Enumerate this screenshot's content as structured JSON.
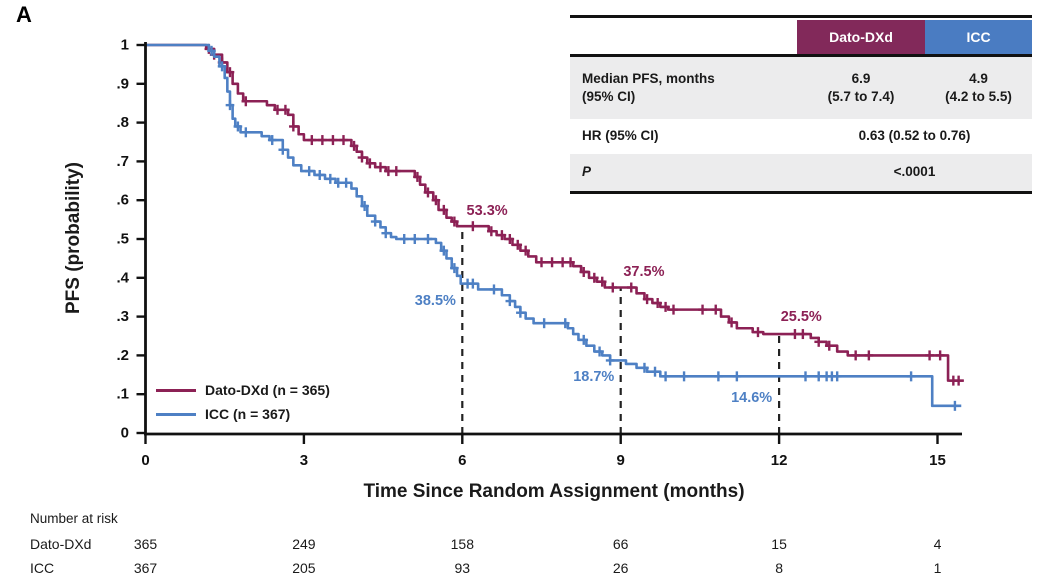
{
  "panel_label": "A",
  "colors": {
    "dato": "#8C2155",
    "icc": "#4E80C4",
    "dato_header_bg": "#82295A",
    "icc_header_bg": "#4A7CC2",
    "axis": "#111111",
    "row_shade": "#ECECED"
  },
  "chart_data": {
    "type": "line",
    "subtype": "kaplan-meier-step",
    "title": "",
    "x_label": "Time Since Random Assignment (months)",
    "y_label": "PFS (probability)",
    "xlim": [
      0,
      15.6
    ],
    "ylim": [
      0,
      1
    ],
    "grid": false,
    "legend_position": "inside lower-left",
    "x_ticks": [
      0,
      3,
      6,
      9,
      12,
      15
    ],
    "y_ticks": [
      {
        "v": 0.0,
        "label": "0"
      },
      {
        "v": 0.1,
        "label": ".1"
      },
      {
        "v": 0.2,
        "label": ".2"
      },
      {
        "v": 0.3,
        "label": ".3"
      },
      {
        "v": 0.4,
        "label": ".4"
      },
      {
        "v": 0.5,
        "label": ".5"
      },
      {
        "v": 0.6,
        "label": ".6"
      },
      {
        "v": 0.7,
        "label": ".7"
      },
      {
        "v": 0.8,
        "label": ".8"
      },
      {
        "v": 0.9,
        "label": ".9"
      },
      {
        "v": 1.0,
        "label": "1"
      }
    ],
    "series": [
      {
        "name": "Dato-DXd (n = 365)",
        "short_name": "Dato-DXd",
        "n": 365,
        "color": "#8C2155",
        "end": 15.5,
        "steps": [
          [
            1.15,
            0.99
          ],
          [
            1.3,
            0.975
          ],
          [
            1.45,
            0.955
          ],
          [
            1.55,
            0.93
          ],
          [
            1.65,
            0.9
          ],
          [
            1.75,
            0.875
          ],
          [
            1.85,
            0.855
          ],
          [
            2.3,
            0.845
          ],
          [
            2.45,
            0.833
          ],
          [
            2.7,
            0.82
          ],
          [
            2.8,
            0.79
          ],
          [
            2.9,
            0.77
          ],
          [
            3.0,
            0.755
          ],
          [
            3.9,
            0.74
          ],
          [
            4.0,
            0.725
          ],
          [
            4.1,
            0.71
          ],
          [
            4.2,
            0.695
          ],
          [
            4.35,
            0.685
          ],
          [
            4.55,
            0.675
          ],
          [
            5.1,
            0.66
          ],
          [
            5.2,
            0.64
          ],
          [
            5.3,
            0.62
          ],
          [
            5.45,
            0.6
          ],
          [
            5.55,
            0.575
          ],
          [
            5.7,
            0.555
          ],
          [
            5.8,
            0.545
          ],
          [
            5.9,
            0.533
          ],
          [
            6.5,
            0.52
          ],
          [
            6.65,
            0.51
          ],
          [
            6.8,
            0.5
          ],
          [
            6.95,
            0.485
          ],
          [
            7.1,
            0.47
          ],
          [
            7.25,
            0.455
          ],
          [
            7.4,
            0.44
          ],
          [
            8.1,
            0.43
          ],
          [
            8.25,
            0.415
          ],
          [
            8.4,
            0.4
          ],
          [
            8.55,
            0.39
          ],
          [
            8.7,
            0.375
          ],
          [
            9.3,
            0.36
          ],
          [
            9.45,
            0.345
          ],
          [
            9.6,
            0.335
          ],
          [
            9.75,
            0.325
          ],
          [
            9.9,
            0.318
          ],
          [
            10.9,
            0.3
          ],
          [
            11.05,
            0.285
          ],
          [
            11.2,
            0.27
          ],
          [
            11.5,
            0.26
          ],
          [
            11.7,
            0.255
          ],
          [
            12.6,
            0.245
          ],
          [
            12.75,
            0.235
          ],
          [
            12.9,
            0.225
          ],
          [
            13.1,
            0.21
          ],
          [
            13.3,
            0.2
          ],
          [
            15.2,
            0.135
          ]
        ],
        "censors": [
          1.2,
          1.3,
          1.45,
          1.6,
          1.9,
          2.5,
          2.65,
          2.8,
          3.15,
          3.35,
          3.55,
          3.75,
          3.95,
          4.1,
          4.25,
          4.45,
          4.6,
          4.75,
          5.15,
          5.35,
          5.5,
          5.65,
          5.85,
          6.2,
          6.55,
          6.75,
          6.9,
          7.05,
          7.2,
          7.5,
          7.7,
          7.9,
          8.05,
          8.3,
          8.5,
          8.65,
          8.85,
          9.2,
          9.5,
          9.7,
          9.85,
          10.0,
          10.55,
          10.8,
          11.1,
          11.6,
          12.3,
          12.45,
          12.75,
          12.95,
          13.45,
          13.7,
          14.85,
          15.05,
          15.3,
          15.4
        ]
      },
      {
        "name": "ICC (n = 367)",
        "short_name": "ICC",
        "n": 367,
        "color": "#4E80C4",
        "end": 15.45,
        "steps": [
          [
            1.2,
            0.985
          ],
          [
            1.3,
            0.97
          ],
          [
            1.4,
            0.945
          ],
          [
            1.5,
            0.915
          ],
          [
            1.55,
            0.88
          ],
          [
            1.6,
            0.845
          ],
          [
            1.65,
            0.81
          ],
          [
            1.7,
            0.79
          ],
          [
            1.8,
            0.775
          ],
          [
            2.2,
            0.765
          ],
          [
            2.35,
            0.755
          ],
          [
            2.6,
            0.73
          ],
          [
            2.7,
            0.71
          ],
          [
            2.8,
            0.69
          ],
          [
            2.95,
            0.675
          ],
          [
            3.2,
            0.665
          ],
          [
            3.4,
            0.655
          ],
          [
            3.6,
            0.645
          ],
          [
            3.9,
            0.63
          ],
          [
            4.0,
            0.61
          ],
          [
            4.1,
            0.585
          ],
          [
            4.2,
            0.56
          ],
          [
            4.35,
            0.545
          ],
          [
            4.45,
            0.53
          ],
          [
            4.55,
            0.515
          ],
          [
            4.65,
            0.505
          ],
          [
            4.75,
            0.5
          ],
          [
            5.5,
            0.49
          ],
          [
            5.6,
            0.47
          ],
          [
            5.7,
            0.45
          ],
          [
            5.8,
            0.425
          ],
          [
            5.9,
            0.405
          ],
          [
            5.97,
            0.385
          ],
          [
            6.3,
            0.37
          ],
          [
            6.75,
            0.355
          ],
          [
            6.9,
            0.34
          ],
          [
            7.0,
            0.325
          ],
          [
            7.1,
            0.31
          ],
          [
            7.2,
            0.295
          ],
          [
            7.35,
            0.283
          ],
          [
            8.0,
            0.27
          ],
          [
            8.1,
            0.255
          ],
          [
            8.2,
            0.24
          ],
          [
            8.35,
            0.225
          ],
          [
            8.5,
            0.21
          ],
          [
            8.65,
            0.2
          ],
          [
            8.8,
            0.187
          ],
          [
            9.1,
            0.178
          ],
          [
            9.3,
            0.168
          ],
          [
            9.5,
            0.158
          ],
          [
            9.75,
            0.146
          ],
          [
            14.9,
            0.07
          ]
        ],
        "censors": [
          1.25,
          1.45,
          1.6,
          1.75,
          1.9,
          2.4,
          2.6,
          3.1,
          3.3,
          3.5,
          3.65,
          3.8,
          4.15,
          4.35,
          4.55,
          4.9,
          5.1,
          5.35,
          5.65,
          5.85,
          6.1,
          6.2,
          6.6,
          6.9,
          7.1,
          7.55,
          7.95,
          8.3,
          8.6,
          8.8,
          9.45,
          9.65,
          9.85,
          10.2,
          10.85,
          11.2,
          12.5,
          12.75,
          12.9,
          13.0,
          13.1,
          14.5,
          15.33
        ]
      }
    ],
    "reference_lines": [
      {
        "t": 6,
        "top_p": 0.533
      },
      {
        "t": 9,
        "top_p": 0.375
      },
      {
        "t": 12,
        "top_p": 0.255
      }
    ],
    "annotations": [
      {
        "text": "53.3%",
        "t": 6.47,
        "p": 0.572,
        "series": 0
      },
      {
        "text": "37.5%",
        "t": 9.44,
        "p": 0.415,
        "series": 0
      },
      {
        "text": "25.5%",
        "t": 12.42,
        "p": 0.299,
        "series": 0
      },
      {
        "text": "38.5%",
        "t": 5.49,
        "p": 0.34,
        "series": 1
      },
      {
        "text": "18.7%",
        "t": 8.49,
        "p": 0.144,
        "series": 1
      },
      {
        "text": "14.6%",
        "t": 11.48,
        "p": 0.09,
        "series": 1
      }
    ]
  },
  "stats_table": {
    "col_headers": [
      "Dato-DXd",
      "ICC"
    ],
    "rows": [
      {
        "label": "Median PFS, months",
        "label2": "(95% CI)",
        "dato": "6.9",
        "dato2": "(5.7 to 7.4)",
        "icc": "4.9",
        "icc2": "(4.2 to 5.5)"
      },
      {
        "label": "HR (95% CI)",
        "value": "0.63 (0.52 to 0.76)"
      },
      {
        "label": "P",
        "value": "<.0001"
      }
    ]
  },
  "risk_table": {
    "title": "Number at risk",
    "times": [
      0,
      3,
      6,
      9,
      12,
      15
    ],
    "rows": [
      {
        "label": "Dato-DXd",
        "counts": [
          "365",
          "249",
          "158",
          "66",
          "15",
          "4"
        ]
      },
      {
        "label": "ICC",
        "counts": [
          "367",
          "205",
          "93",
          "26",
          "8",
          "1"
        ]
      }
    ]
  }
}
